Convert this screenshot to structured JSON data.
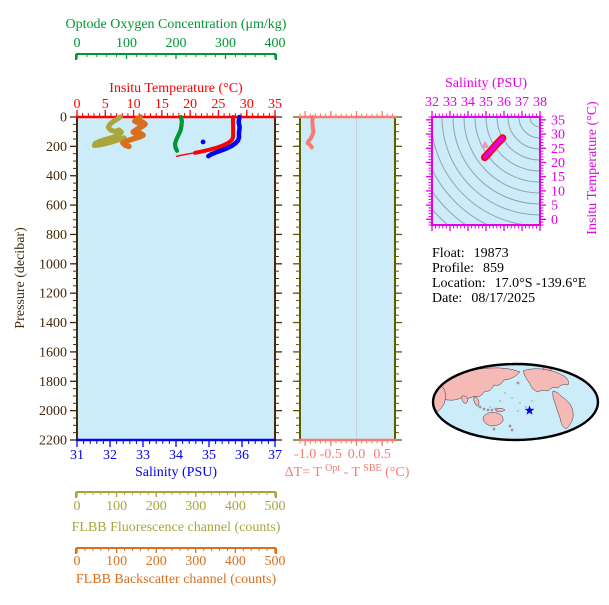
{
  "colors": {
    "panel_bg": "#cdecf9",
    "frame_main": "#46280a",
    "frame_mid": "#5d5d00",
    "oxygen": "#009632",
    "temperature": "#ff0000",
    "salinity": "#0202ee",
    "fluorescence": "#aaa63c",
    "backscatter": "#d96f1e",
    "delta": "#f97a71",
    "magenta": "#e302e3",
    "contour": "#8fa3ad",
    "zero_line": "#c6d2da",
    "land": "#f5b9b6",
    "ocean": "#cdecf9",
    "coast": "#3a3a3a",
    "map_outline": "#000000",
    "star": "#0008d8",
    "ts_marker": "#e79ac8",
    "info_text": "#000000"
  },
  "info": {
    "float_label": "Float:",
    "float_value": "19873",
    "profile_label": "Profile:",
    "profile_value": "859",
    "location_label": "Location:",
    "location_value": "17.0°S  -139.6°E",
    "date_label": "Date:",
    "date_value": "08/17/2025"
  },
  "chart_data": [
    {
      "id": "profile-panel",
      "type": "line",
      "y_axis": {
        "label": "Pressure (decibar)",
        "range": [
          0,
          2200
        ],
        "tick_labels": [
          "0",
          "200",
          "400",
          "600",
          "800",
          "1000",
          "1200",
          "1400",
          "1600",
          "1800",
          "2000",
          "2200"
        ],
        "minor_step": 50,
        "color_key": "frame_main"
      },
      "x_axes": [
        {
          "id": "oxygen",
          "label": "Optode Oxygen Concentration (μm/kg)",
          "range": [
            0,
            400
          ],
          "tick_labels": [
            "0",
            "100",
            "200",
            "300",
            "400"
          ],
          "minor_step": 20,
          "color_key": "oxygen"
        },
        {
          "id": "temperature",
          "label": "Insitu Temperature (°C)",
          "range": [
            0,
            35
          ],
          "tick_labels": [
            "0",
            "5",
            "10",
            "15",
            "20",
            "25",
            "30",
            "35"
          ],
          "minor_step": 1,
          "color_key": "temperature"
        },
        {
          "id": "salinity",
          "label": "Salinity (PSU)",
          "range": [
            31,
            37
          ],
          "tick_labels": [
            "31",
            "32",
            "33",
            "34",
            "35",
            "36",
            "37"
          ],
          "minor_step": 0.2,
          "color_key": "salinity"
        },
        {
          "id": "fluorescence",
          "label": "FLBB Fluorescence channel (counts)",
          "range": [
            0,
            500
          ],
          "tick_labels": [
            "0",
            "100",
            "200",
            "300",
            "400",
            "500"
          ],
          "minor_step": 20,
          "color_key": "fluorescence"
        },
        {
          "id": "backscatter",
          "label": "FLBB Backscatter channel (counts)",
          "range": [
            0,
            500
          ],
          "tick_labels": [
            "0",
            "100",
            "200",
            "300",
            "400",
            "500"
          ],
          "minor_step": 20,
          "color_key": "backscatter"
        }
      ],
      "series": [
        {
          "name": "fluorescence",
          "axis": "fluorescence",
          "color_key": "fluorescence",
          "points": [
            [
              109,
              0
            ],
            [
              101,
              16
            ],
            [
              91,
              32
            ],
            [
              83,
              50
            ],
            [
              79,
              70
            ],
            [
              85,
              90
            ],
            [
              97,
              98
            ],
            [
              106,
              88
            ],
            [
              112,
              104
            ],
            [
              106,
              122
            ],
            [
              95,
              134
            ],
            [
              83,
              144
            ],
            [
              70,
              154
            ],
            [
              57,
              166
            ],
            [
              46,
              180
            ],
            [
              44,
              194
            ],
            [
              58,
              190
            ],
            [
              74,
              180
            ],
            [
              88,
              170
            ],
            [
              100,
              160
            ],
            [
              111,
              150
            ],
            [
              119,
              142
            ]
          ]
        },
        {
          "name": "backscatter",
          "axis": "backscatter",
          "color_key": "backscatter",
          "points": [
            [
              160,
              0
            ],
            [
              152,
              14
            ],
            [
              146,
              28
            ],
            [
              155,
              40
            ],
            [
              165,
              34
            ],
            [
              172,
              48
            ],
            [
              166,
              62
            ],
            [
              157,
              74
            ],
            [
              149,
              88
            ],
            [
              142,
              102
            ],
            [
              150,
              116
            ],
            [
              160,
              110
            ],
            [
              167,
              124
            ],
            [
              157,
              136
            ],
            [
              146,
              146
            ],
            [
              134,
              156
            ],
            [
              123,
              166
            ],
            [
              116,
              178
            ],
            [
              122,
              192
            ],
            [
              131,
              200
            ]
          ]
        },
        {
          "name": "oxygen",
          "axis": "oxygen",
          "color_key": "oxygen",
          "points": [
            [
              210,
              0
            ],
            [
              212,
              30
            ],
            [
              211,
              62
            ],
            [
              209,
              92
            ],
            [
              205,
              122
            ],
            [
              201,
              152
            ],
            [
              198,
              182
            ],
            [
              199,
              208
            ],
            [
              202,
              230
            ]
          ]
        },
        {
          "name": "temperature-tail",
          "axis": "temperature",
          "color_key": "temperature",
          "points": [
            [
              20.9,
              244
            ],
            [
              19.5,
              253
            ],
            [
              18.4,
              261
            ],
            [
              17.6,
              268
            ]
          ]
        },
        {
          "name": "temperature",
          "axis": "temperature",
          "color_key": "temperature",
          "points": [
            [
              27.6,
              0
            ],
            [
              27.55,
              30
            ],
            [
              27.6,
              65
            ],
            [
              27.6,
              100
            ],
            [
              27.6,
              135
            ],
            [
              27.4,
              155
            ],
            [
              26.8,
              175
            ],
            [
              25.9,
              192
            ],
            [
              24.8,
              208
            ],
            [
              23.5,
              222
            ],
            [
              22.1,
              234
            ],
            [
              20.9,
              244
            ]
          ]
        },
        {
          "name": "salinity",
          "axis": "salinity",
          "color_key": "salinity",
          "points": [
            [
              35.92,
              0
            ],
            [
              35.9,
              35
            ],
            [
              35.93,
              70
            ],
            [
              35.91,
              105
            ],
            [
              35.91,
              140
            ],
            [
              35.88,
              160
            ],
            [
              35.8,
              180
            ],
            [
              35.68,
              198
            ],
            [
              35.52,
              215
            ],
            [
              35.35,
              230
            ],
            [
              35.18,
              244
            ],
            [
              35.05,
              257
            ],
            [
              34.98,
              267
            ]
          ]
        },
        {
          "name": "salinity-spot",
          "axis": "salinity",
          "color_key": "salinity",
          "dot": true,
          "points": [
            [
              34.82,
              170
            ]
          ]
        }
      ]
    },
    {
      "id": "delta-t-panel",
      "type": "line",
      "x_axis": {
        "label_parts": {
          "prefix": "ΔT= T",
          "sup1": "Opt",
          "mid": " - T",
          "sup2": "SBE",
          "suffix": " (°C)"
        },
        "range": [
          -1.1,
          0.75
        ],
        "tick_labels": [
          "-1.0",
          "-0.5",
          "0.0",
          "0.5"
        ],
        "minor_step": 0.1,
        "color_key": "delta"
      },
      "series": [
        {
          "name": "delta-t",
          "color_key": "delta",
          "points": [
            [
              -0.85,
              0
            ],
            [
              -0.86,
              35
            ],
            [
              -0.85,
              70
            ],
            [
              -0.84,
              100
            ],
            [
              -0.86,
              125
            ],
            [
              -0.89,
              145
            ],
            [
              -0.93,
              165
            ],
            [
              -0.95,
              178
            ],
            [
              -0.9,
              192
            ],
            [
              -0.87,
              207
            ]
          ]
        }
      ]
    },
    {
      "id": "ts-panel",
      "type": "line",
      "x_axis": {
        "label": "Salinity (PSU)",
        "range": [
          32,
          38
        ],
        "tick_labels": [
          "32",
          "33",
          "34",
          "35",
          "36",
          "37",
          "38"
        ],
        "minor_step": 0.2,
        "color_key": "magenta"
      },
      "y_axis": {
        "label": "Insitu Temperature (°C)",
        "range": [
          -2,
          36
        ],
        "tick_labels": [
          "0",
          "5",
          "10",
          "15",
          "20",
          "25",
          "30",
          "35"
        ],
        "minor_step": 1,
        "color_key": "magenta"
      },
      "series": [
        {
          "name": "ts-curve",
          "color_key": "magenta",
          "points": [
            [
              34.93,
              21.8
            ],
            [
              35.05,
              22.6
            ],
            [
              35.18,
              23.5
            ],
            [
              35.32,
              24.5
            ],
            [
              35.46,
              25.5
            ],
            [
              35.6,
              26.5
            ],
            [
              35.74,
              27.4
            ],
            [
              35.86,
              28.2
            ],
            [
              35.92,
              28.6
            ]
          ]
        }
      ],
      "marker": {
        "shape": "triangle",
        "salinity": 34.95,
        "temperature": 26.2
      }
    },
    {
      "id": "world-map",
      "type": "map",
      "marker": {
        "shape": "star",
        "color_key": "star"
      }
    }
  ]
}
